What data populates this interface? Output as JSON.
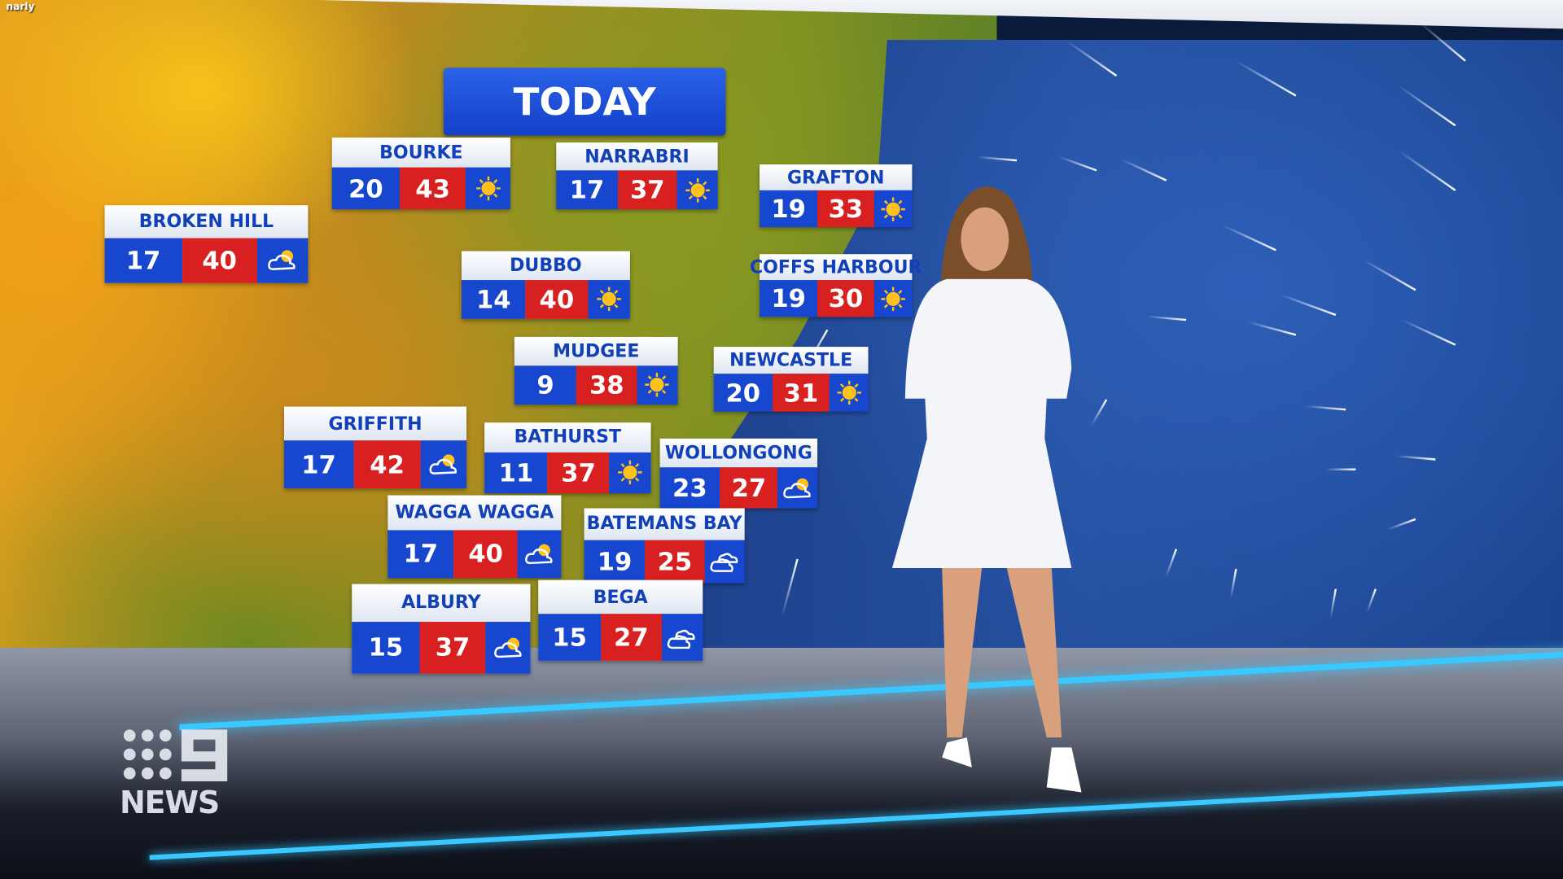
{
  "overlay_text": "narly",
  "title": "TODAY",
  "logo": {
    "brand": "9 NEWS",
    "text": "NEWS"
  },
  "colors": {
    "min_bg": "#1747cf",
    "max_bg": "#d82020",
    "header_text": "#1240b8",
    "accent": "#39c8ff"
  },
  "cities": [
    {
      "name": "BOURKE",
      "min": "20",
      "max": "43",
      "icon": "sun-icon"
    },
    {
      "name": "NARRABRI",
      "min": "17",
      "max": "37",
      "icon": "sun-icon"
    },
    {
      "name": "GRAFTON",
      "min": "19",
      "max": "33",
      "icon": "sun-icon"
    },
    {
      "name": "BROKEN HILL",
      "min": "17",
      "max": "40",
      "icon": "partly-cloudy-icon"
    },
    {
      "name": "DUBBO",
      "min": "14",
      "max": "40",
      "icon": "sun-icon"
    },
    {
      "name": "COFFS HARBOUR",
      "min": "19",
      "max": "30",
      "icon": "sun-icon"
    },
    {
      "name": "MUDGEE",
      "min": "9",
      "max": "38",
      "icon": "sun-icon"
    },
    {
      "name": "NEWCASTLE",
      "min": "20",
      "max": "31",
      "icon": "sun-icon"
    },
    {
      "name": "GRIFFITH",
      "min": "17",
      "max": "42",
      "icon": "partly-cloudy-icon"
    },
    {
      "name": "BATHURST",
      "min": "11",
      "max": "37",
      "icon": "sun-icon"
    },
    {
      "name": "WOLLONGONG",
      "min": "23",
      "max": "27",
      "icon": "partly-cloudy-icon"
    },
    {
      "name": "WAGGA WAGGA",
      "min": "17",
      "max": "40",
      "icon": "partly-cloudy-icon"
    },
    {
      "name": "BATEMANS BAY",
      "min": "19",
      "max": "25",
      "icon": "cloudy-icon"
    },
    {
      "name": "ALBURY",
      "min": "15",
      "max": "37",
      "icon": "partly-cloudy-icon"
    },
    {
      "name": "BEGA",
      "min": "15",
      "max": "27",
      "icon": "cloudy-icon"
    }
  ]
}
